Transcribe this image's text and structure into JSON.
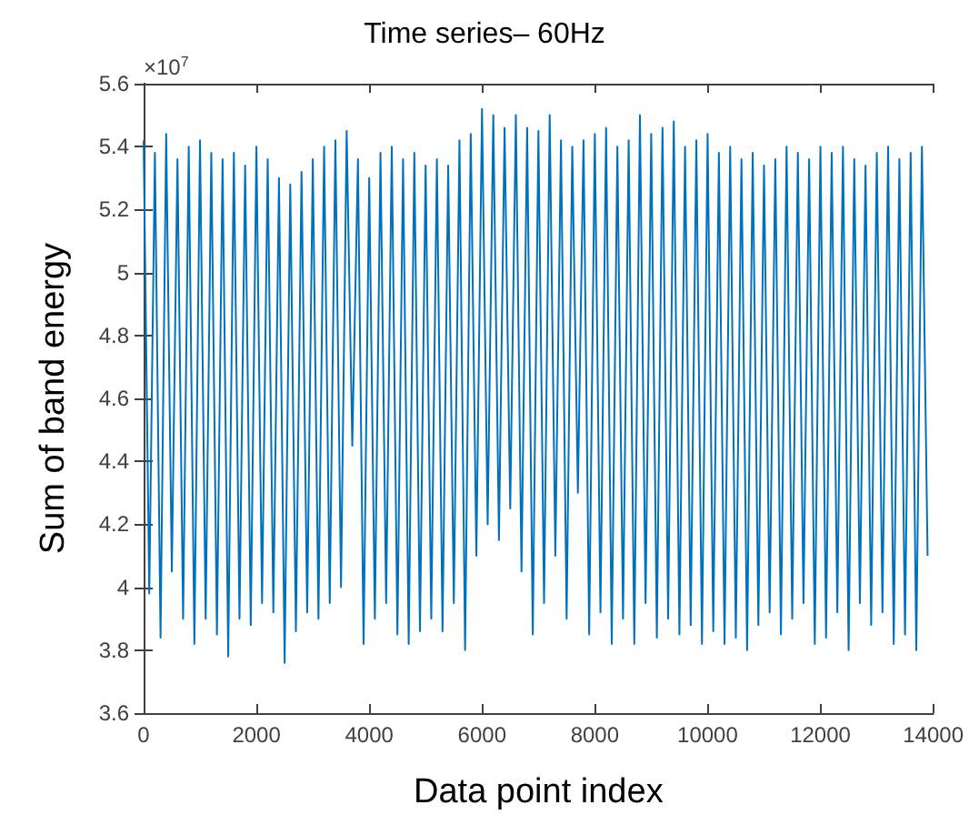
{
  "chart_data": {
    "type": "line",
    "title": "Time series– 60Hz",
    "xlabel": "Data point index",
    "ylabel": "Sum of band energy",
    "annotations": [
      "×10$^{7}$"
    ],
    "x": [
      0,
      100,
      200,
      300,
      400,
      500,
      600,
      700,
      800,
      900,
      1000,
      1100,
      1200,
      1300,
      1400,
      1500,
      1600,
      1700,
      1800,
      1900,
      2000,
      2100,
      2200,
      2300,
      2400,
      2500,
      2600,
      2700,
      2800,
      2900,
      3000,
      3100,
      3200,
      3300,
      3400,
      3500,
      3600,
      3700,
      3800,
      3900,
      4000,
      4100,
      4200,
      4300,
      4400,
      4500,
      4600,
      4700,
      4800,
      4900,
      5000,
      5100,
      5200,
      5300,
      5400,
      5500,
      5600,
      5700,
      5800,
      5900,
      6000,
      6100,
      6200,
      6300,
      6400,
      6500,
      6600,
      6700,
      6800,
      6900,
      7000,
      7100,
      7200,
      7300,
      7400,
      7500,
      7600,
      7700,
      7800,
      7900,
      8000,
      8100,
      8200,
      8300,
      8400,
      8500,
      8600,
      8700,
      8800,
      8900,
      9000,
      9100,
      9200,
      9300,
      9400,
      9500,
      9600,
      9700,
      9800,
      9900,
      10000,
      10100,
      10200,
      10300,
      10400,
      10500,
      10600,
      10700,
      10800,
      10900,
      11000,
      11100,
      11200,
      11300,
      11400,
      11500,
      11600,
      11700,
      11800,
      11900,
      12000,
      12100,
      12200,
      12300,
      12400,
      12500,
      12600,
      12700,
      12800,
      12900,
      13000,
      13100,
      13200,
      13300,
      13400,
      13500,
      13600,
      13700,
      13800,
      13900
    ],
    "series": [
      {
        "color": "#0072bd",
        "values": [
          5.42,
          3.98,
          5.38,
          3.84,
          5.44,
          4.05,
          5.36,
          3.9,
          5.4,
          3.82,
          5.42,
          3.9,
          5.38,
          3.85,
          5.36,
          3.78,
          5.38,
          3.9,
          5.34,
          3.88,
          5.4,
          3.95,
          5.36,
          3.92,
          5.3,
          3.76,
          5.28,
          3.86,
          5.32,
          3.92,
          5.36,
          3.9,
          5.4,
          3.95,
          5.42,
          4.0,
          5.45,
          4.45,
          5.36,
          3.82,
          5.3,
          3.9,
          5.38,
          3.95,
          5.4,
          3.85,
          5.36,
          3.82,
          5.38,
          3.86,
          5.34,
          3.9,
          5.36,
          3.86,
          5.34,
          3.95,
          5.42,
          3.8,
          5.44,
          4.1,
          5.52,
          4.2,
          5.5,
          4.15,
          5.46,
          4.25,
          5.5,
          4.05,
          5.46,
          3.85,
          5.45,
          3.95,
          5.5,
          4.1,
          5.42,
          3.9,
          5.4,
          4.3,
          5.42,
          3.85,
          5.44,
          3.92,
          5.46,
          3.82,
          5.4,
          3.9,
          5.42,
          3.82,
          5.5,
          3.95,
          5.44,
          3.84,
          5.46,
          3.9,
          5.48,
          3.85,
          5.4,
          3.88,
          5.42,
          3.82,
          5.44,
          3.86,
          5.38,
          3.82,
          5.4,
          3.84,
          5.36,
          3.8,
          5.38,
          3.88,
          5.34,
          3.92,
          5.36,
          3.85,
          5.4,
          3.9,
          5.38,
          3.95,
          5.36,
          3.82,
          5.4,
          3.84,
          5.38,
          3.92,
          5.4,
          3.8,
          5.36,
          3.95,
          5.34,
          3.88,
          5.38,
          3.92,
          5.4,
          3.82,
          5.36,
          3.85,
          5.38,
          3.8,
          5.4,
          4.1
        ]
      }
    ],
    "xlim": [
      0,
      14000
    ],
    "xticks": [
      0,
      2000,
      4000,
      6000,
      8000,
      10000,
      12000,
      14000
    ],
    "ylim": [
      3.6,
      5.6
    ],
    "yticks": [
      3.6,
      3.8,
      4,
      4.2,
      4.4,
      4.6,
      4.8,
      5,
      5.2,
      5.4,
      5.6
    ],
    "grid": false,
    "marker": "none",
    "line_style": "solid"
  }
}
